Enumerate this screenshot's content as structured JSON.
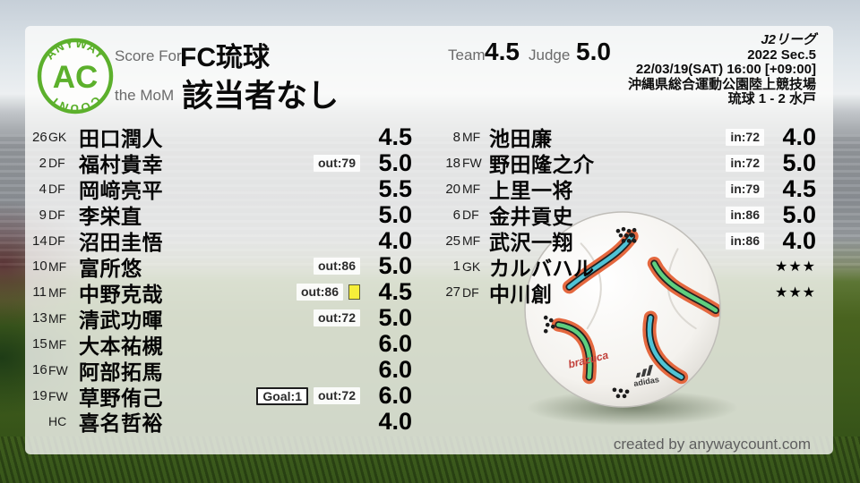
{
  "logo": {
    "arc_top": "ANYWAY",
    "center": "AC",
    "arc_bottom": "COUNT"
  },
  "header": {
    "score_for_label": "Score For",
    "team_name": "FC琉球",
    "mom_label": "the MoM",
    "mom_name": "該当者なし",
    "team_label": "Team",
    "team_score": "4.5",
    "judge_label": "Judge",
    "judge_score": "5.0"
  },
  "match_info": {
    "league": "J2リーグ",
    "section": "2022 Sec.5",
    "kickoff": "22/03/19(SAT) 16:00 [+09:00]",
    "venue": "沖縄県総合運動公園陸上競技場",
    "score": "琉球 1 - 2 水戸"
  },
  "starters": [
    {
      "number": "26",
      "pos": "GK",
      "name": "田口潤人",
      "rating": "4.5"
    },
    {
      "number": "2",
      "pos": "DF",
      "name": "福村貴幸",
      "out": "out:79",
      "rating": "5.0"
    },
    {
      "number": "4",
      "pos": "DF",
      "name": "岡﨑亮平",
      "rating": "5.5"
    },
    {
      "number": "9",
      "pos": "DF",
      "name": "李栄直",
      "rating": "5.0"
    },
    {
      "number": "14",
      "pos": "DF",
      "name": "沼田圭悟",
      "rating": "4.0"
    },
    {
      "number": "10",
      "pos": "MF",
      "name": "富所悠",
      "out": "out:86",
      "rating": "5.0"
    },
    {
      "number": "11",
      "pos": "MF",
      "name": "中野克哉",
      "out": "out:86",
      "yellow": true,
      "rating": "4.5"
    },
    {
      "number": "13",
      "pos": "MF",
      "name": "清武功暉",
      "out": "out:72",
      "rating": "5.0"
    },
    {
      "number": "15",
      "pos": "MF",
      "name": "大本祐槻",
      "rating": "6.0"
    },
    {
      "number": "16",
      "pos": "FW",
      "name": "阿部拓馬",
      "rating": "6.0"
    },
    {
      "number": "19",
      "pos": "FW",
      "name": "草野侑己",
      "goal": "Goal:1",
      "out": "out:72",
      "rating": "6.0"
    },
    {
      "number": "",
      "pos": "HC",
      "name": "喜名哲裕",
      "rating": "4.0"
    }
  ],
  "subs": [
    {
      "number": "8",
      "pos": "MF",
      "name": "池田廉",
      "in": "in:72",
      "rating": "4.0"
    },
    {
      "number": "18",
      "pos": "FW",
      "name": "野田隆之介",
      "in": "in:72",
      "rating": "5.0"
    },
    {
      "number": "20",
      "pos": "MF",
      "name": "上里一将",
      "in": "in:79",
      "rating": "4.5"
    },
    {
      "number": "6",
      "pos": "DF",
      "name": "金井貢史",
      "in": "in:86",
      "rating": "5.0"
    },
    {
      "number": "25",
      "pos": "MF",
      "name": "武沢一翔",
      "in": "in:86",
      "rating": "4.0"
    },
    {
      "number": "1",
      "pos": "GK",
      "name": "カルバハル",
      "stars": "★★★"
    },
    {
      "number": "27",
      "pos": "DF",
      "name": "中川創",
      "stars": "★★★"
    }
  ],
  "ball_graphic": {
    "brand": "adidas",
    "model": "brazuca"
  },
  "footer": {
    "credit": "created by anywaycount.com"
  },
  "colors": {
    "accent_green": "#5cb02c",
    "yellow_card": "#f6ee3a",
    "badge_bg": "#f2f2f0",
    "text": "#0a0a0a",
    "muted_label": "#6b6b6b",
    "ball_orange": "#e4683f",
    "ball_teal": "#4fc3d6",
    "ball_green": "#5ecf7f"
  }
}
